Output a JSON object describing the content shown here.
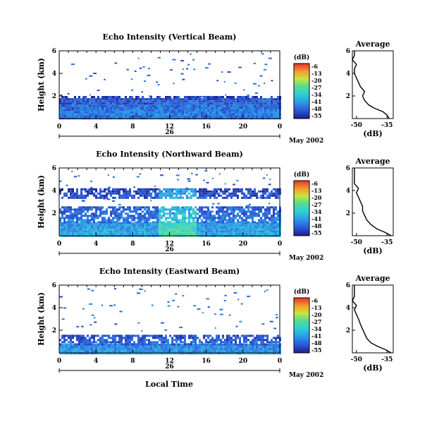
{
  "chart_data": [
    {
      "type": "heatmap",
      "title": "Echo Intensity (Vertical Beam)",
      "ylabel": "Height (km)",
      "xticks": [
        "0",
        "4",
        "8",
        "12",
        "16",
        "20",
        "0"
      ],
      "yticks": [
        "6",
        "4",
        "2"
      ],
      "xlim": [
        0,
        24
      ],
      "ylim": [
        0,
        6
      ],
      "date_day": "26",
      "date_label": "May 2002",
      "colorbar": {
        "label": "(dB)",
        "ticks": [
          "-6",
          "-13",
          "-20",
          "-27",
          "-34",
          "-41",
          "-48",
          "-55"
        ],
        "range": [
          -55,
          -6
        ]
      },
      "layers": [
        {
          "h0": 0.1,
          "h1": 1.8,
          "v": -45
        },
        {
          "h0": 0.3,
          "h1": 1.2,
          "v": -42
        },
        {
          "h0": 1.8,
          "h1": 2.0,
          "v": -48
        }
      ],
      "average": {
        "title": "Average",
        "xlabel": "(dB)",
        "xticks": [
          "-50",
          "-35"
        ],
        "yticks": [
          "6",
          "4",
          "2"
        ],
        "xlim": [
          -52,
          -32
        ],
        "profile": [
          [
            -34,
            0.0
          ],
          [
            -35,
            0.3
          ],
          [
            -37,
            0.6
          ],
          [
            -41,
            0.9
          ],
          [
            -44,
            1.2
          ],
          [
            -46,
            1.6
          ],
          [
            -47,
            2.0
          ],
          [
            -46,
            2.4
          ],
          [
            -48,
            2.8
          ],
          [
            -49,
            3.2
          ],
          [
            -50,
            3.6
          ],
          [
            -51,
            4.0
          ],
          [
            -51,
            4.4
          ],
          [
            -50,
            4.8
          ],
          [
            -52,
            5.2
          ],
          [
            -51,
            5.6
          ],
          [
            -51,
            6.0
          ]
        ]
      }
    },
    {
      "type": "heatmap",
      "title": "Echo Intensity (Northward Beam)",
      "ylabel": "Height (km)",
      "xticks": [
        "0",
        "4",
        "8",
        "12",
        "16",
        "20",
        "0"
      ],
      "yticks": [
        "6",
        "4",
        "2"
      ],
      "xlim": [
        0,
        24
      ],
      "ylim": [
        0,
        6
      ],
      "date_day": "26",
      "date_label": "May 2002",
      "colorbar": {
        "label": "(dB)",
        "ticks": [
          "-6",
          "-13",
          "-20",
          "-27",
          "-34",
          "-41",
          "-48",
          "-55"
        ],
        "range": [
          -55,
          -6
        ]
      },
      "layers": [
        {
          "h0": 0.0,
          "h1": 1.2,
          "v": -38
        },
        {
          "h0": 1.2,
          "h1": 2.6,
          "v": -44
        },
        {
          "h0": 3.4,
          "h1": 4.2,
          "v": -48
        }
      ],
      "average": {
        "title": "Average",
        "xlabel": "(dB)",
        "xticks": [
          "-50",
          "-35"
        ],
        "yticks": [
          "6",
          "4",
          "2"
        ],
        "xlim": [
          -52,
          -32
        ],
        "profile": [
          [
            -33,
            0.0
          ],
          [
            -36,
            0.3
          ],
          [
            -40,
            0.6
          ],
          [
            -43,
            1.0
          ],
          [
            -45,
            1.4
          ],
          [
            -46,
            1.8
          ],
          [
            -47,
            2.2
          ],
          [
            -47,
            2.6
          ],
          [
            -48,
            3.0
          ],
          [
            -49,
            3.4
          ],
          [
            -50,
            3.8
          ],
          [
            -49,
            4.2
          ],
          [
            -51,
            4.6
          ],
          [
            -51,
            5.0
          ],
          [
            -51,
            5.4
          ],
          [
            -51,
            6.0
          ]
        ]
      }
    },
    {
      "type": "heatmap",
      "title": "Echo Intensity (Eastward Beam)",
      "ylabel": "Height (km)",
      "xlabel": "Local Time",
      "xticks": [
        "0",
        "4",
        "8",
        "12",
        "16",
        "20",
        "0"
      ],
      "yticks": [
        "6",
        "4",
        "2"
      ],
      "xlim": [
        0,
        24
      ],
      "ylim": [
        0,
        6
      ],
      "date_day": "26",
      "date_label": "May 2002",
      "colorbar": {
        "label": "(dB)",
        "ticks": [
          "-6",
          "-13",
          "-20",
          "-27",
          "-34",
          "-41",
          "-48",
          "-55"
        ],
        "range": [
          -55,
          -6
        ]
      },
      "layers": [
        {
          "h0": 0.0,
          "h1": 0.8,
          "v": -40
        },
        {
          "h0": 0.8,
          "h1": 1.6,
          "v": -46
        }
      ],
      "average": {
        "title": "Average",
        "xlabel": "(dB)",
        "xticks": [
          "-50",
          "-35"
        ],
        "yticks": [
          "6",
          "4",
          "2"
        ],
        "xlim": [
          -52,
          -32
        ],
        "profile": [
          [
            -33,
            0.0
          ],
          [
            -36,
            0.3
          ],
          [
            -40,
            0.6
          ],
          [
            -43,
            0.9
          ],
          [
            -45,
            1.3
          ],
          [
            -46,
            1.7
          ],
          [
            -47,
            2.1
          ],
          [
            -48,
            2.5
          ],
          [
            -49,
            3.0
          ],
          [
            -50,
            3.4
          ],
          [
            -51,
            3.8
          ],
          [
            -50,
            4.2
          ],
          [
            -52,
            4.6
          ],
          [
            -51,
            5.0
          ],
          [
            -51,
            5.4
          ],
          [
            -51,
            6.0
          ]
        ]
      }
    }
  ]
}
